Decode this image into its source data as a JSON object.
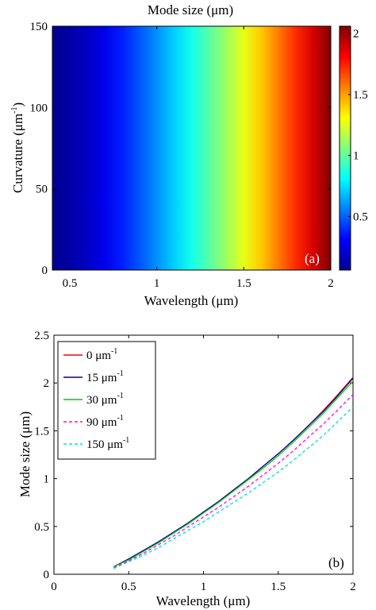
{
  "chart_data": [
    {
      "type": "heatmap",
      "panel_label": "(a)",
      "title": "Mode size (μm)",
      "xlabel": "Wavelength (μm)",
      "ylabel": "Curvature (μm",
      "ylabel_sup": "-1",
      "ylabel_close": ")",
      "xlim": [
        0.4,
        2.0
      ],
      "ylim": [
        0,
        150
      ],
      "xticks": [
        "0.5",
        "1",
        "1.5",
        "2"
      ],
      "xtick_values": [
        0.5,
        1,
        1.5,
        2
      ],
      "yticks": [
        "0",
        "50",
        "100",
        "150"
      ],
      "ytick_values": [
        0,
        50,
        100,
        150
      ],
      "colorbar": {
        "range": [
          0.06,
          2.06
        ],
        "ticks": [
          "0.5",
          "1",
          "1.5",
          "2"
        ],
        "tick_values": [
          0.5,
          1,
          1.5,
          2
        ],
        "colormap": "jet"
      }
    },
    {
      "type": "line",
      "panel_label": "(b)",
      "xlabel": "Wavelength (μm)",
      "ylabel": "Mode size (μm)",
      "xlim": [
        0,
        2
      ],
      "ylim": [
        0,
        2.5
      ],
      "xticks": [
        "0",
        "0.5",
        "1",
        "1.5",
        "2"
      ],
      "xtick_values": [
        0,
        0.5,
        1,
        1.5,
        2
      ],
      "yticks": [
        "0",
        "0.5",
        "1",
        "1.5",
        "2",
        "2.5"
      ],
      "ytick_values": [
        0,
        0.5,
        1,
        1.5,
        2,
        2.5
      ],
      "legend_position": "top-left",
      "x": [
        0.4,
        0.5,
        0.6,
        0.7,
        0.8,
        0.9,
        1.0,
        1.1,
        1.2,
        1.3,
        1.4,
        1.5,
        1.6,
        1.7,
        1.8,
        1.9,
        2.0
      ],
      "series": [
        {
          "name": "0 μm",
          "name_sup": "-1",
          "color": "#ff0000",
          "dash": "solid",
          "values": [
            0.08,
            0.16,
            0.25,
            0.34,
            0.44,
            0.54,
            0.65,
            0.76,
            0.88,
            1.0,
            1.13,
            1.26,
            1.4,
            1.55,
            1.71,
            1.88,
            2.06
          ]
        },
        {
          "name": "15 μm",
          "name_sup": "-1",
          "color": "#0000aa",
          "dash": "solid",
          "values": [
            0.08,
            0.16,
            0.25,
            0.34,
            0.44,
            0.54,
            0.65,
            0.76,
            0.88,
            1.0,
            1.13,
            1.26,
            1.4,
            1.55,
            1.7,
            1.87,
            2.05
          ]
        },
        {
          "name": "30 μm",
          "name_sup": "-1",
          "color": "#00cc00",
          "dash": "solid",
          "values": [
            0.08,
            0.15,
            0.24,
            0.33,
            0.43,
            0.53,
            0.64,
            0.75,
            0.87,
            0.99,
            1.11,
            1.24,
            1.38,
            1.53,
            1.68,
            1.85,
            2.02
          ]
        },
        {
          "name": "90 μm",
          "name_sup": "-1",
          "color": "#ff00ff",
          "dash": "dashed",
          "values": [
            0.07,
            0.14,
            0.22,
            0.31,
            0.4,
            0.5,
            0.6,
            0.7,
            0.81,
            0.92,
            1.04,
            1.16,
            1.29,
            1.43,
            1.57,
            1.72,
            1.88
          ]
        },
        {
          "name": "150 μm",
          "name_sup": "-1",
          "color": "#00e0ee",
          "dash": "dashed",
          "values": [
            0.06,
            0.13,
            0.2,
            0.28,
            0.37,
            0.46,
            0.55,
            0.65,
            0.75,
            0.85,
            0.96,
            1.07,
            1.19,
            1.32,
            1.45,
            1.6,
            1.75
          ]
        }
      ]
    }
  ]
}
